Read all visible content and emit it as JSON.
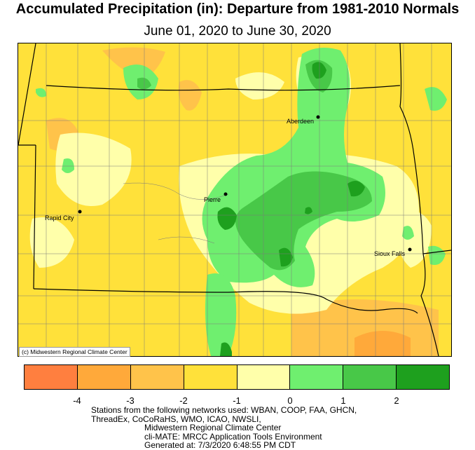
{
  "title": "Accumulated Precipitation (in): Departure from 1981-2010 Normals",
  "subtitle": "June 01, 2020 to June 30, 2020",
  "credit": "(c) Midwestern Regional Climate Center",
  "cities": [
    {
      "name": "Aberdeen",
      "icon": "city-dot"
    },
    {
      "name": "Pierre",
      "icon": "city-dot"
    },
    {
      "name": "Rapid City",
      "icon": "city-dot"
    },
    {
      "name": "Sioux Falls",
      "icon": "city-dot"
    }
  ],
  "legend": {
    "colors": [
      "#ff7f3f",
      "#ffa93a",
      "#ffc34a",
      "#ffe13a",
      "#ffffaa",
      "#6fef6f",
      "#48c848",
      "#1ea01e"
    ],
    "bin_edges": [
      -5,
      -4,
      -3,
      -2,
      -1,
      0,
      1,
      2,
      3
    ],
    "tick_labels": [
      "-4",
      "-3",
      "-2",
      "-1",
      "0",
      "1",
      "2"
    ]
  },
  "notes": [
    "Stations from the following networks used: WBAN, COOP, FAA, GHCN,",
    "ThreadEx, CoCoRaHS, WMO, ICAO, NWSLI,",
    "Midwestern Regional Climate Center",
    "cli-MATE: MRCC Application Tools Environment",
    "Generated at: 7/3/2020 6:48:55 PM CDT"
  ],
  "colors": {
    "background_low": "#ffe13a",
    "dry_patch": "#ffc34a",
    "very_dry_patch": "#ffa93a",
    "near_normal": "#ffffaa",
    "wet": "#6fef6f",
    "wetter": "#48c848",
    "wettest": "#1ea01e",
    "outside_region": "#ffffff"
  }
}
